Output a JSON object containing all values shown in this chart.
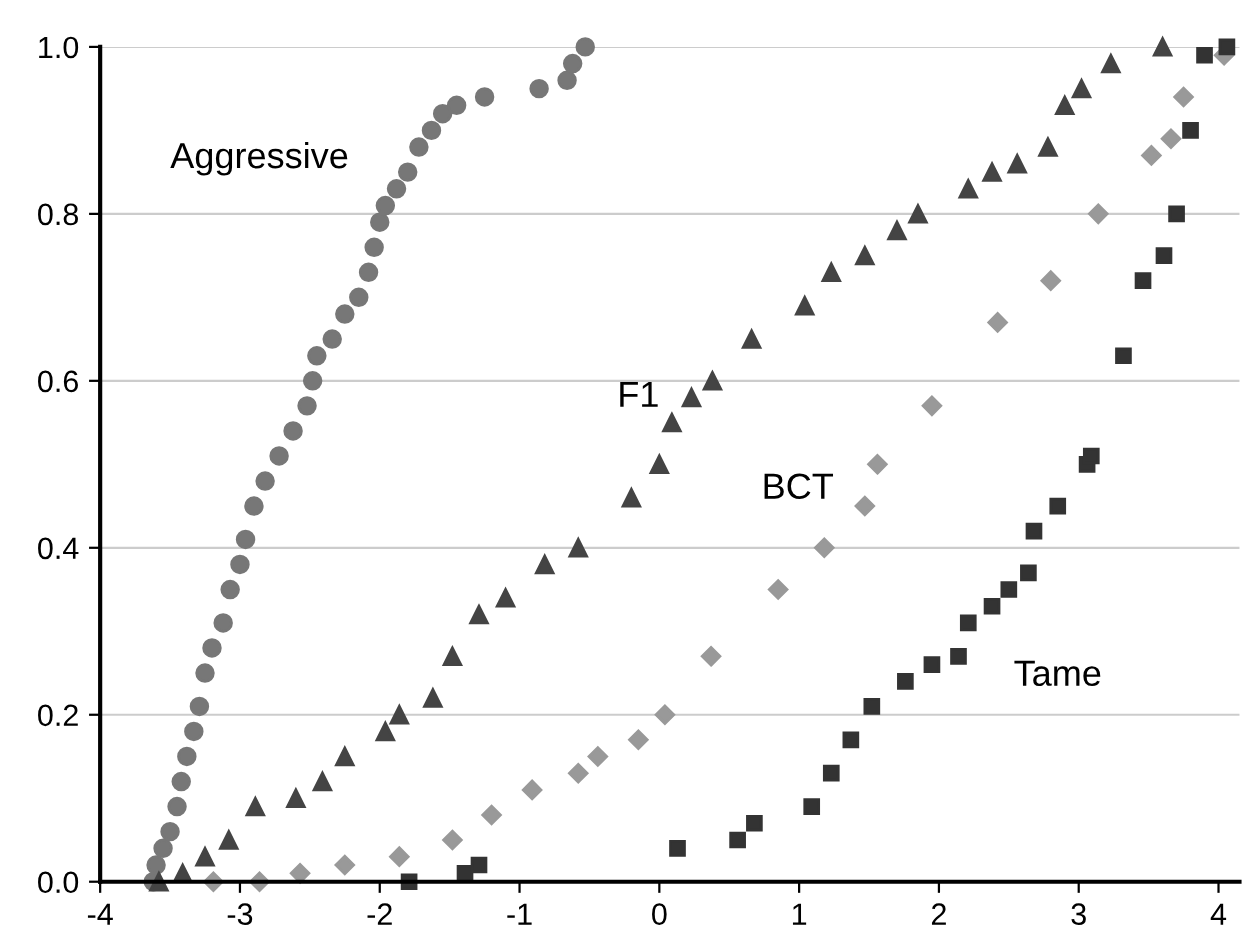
{
  "chart_data": {
    "type": "scatter",
    "xlim": [
      -4,
      4.15
    ],
    "ylim": [
      0,
      1
    ],
    "xticks": [
      -4,
      -3,
      -2,
      -1,
      0,
      1,
      2,
      3,
      4
    ],
    "yticks": [
      {
        "value": 0,
        "label": "0.0"
      },
      {
        "value": 0.2,
        "label": "0.2"
      },
      {
        "value": 0.4,
        "label": "0.4"
      },
      {
        "value": 0.6,
        "label": "0.6"
      },
      {
        "value": 0.8,
        "label": "0.8"
      },
      {
        "value": 1,
        "label": "1.0"
      }
    ],
    "grid": "y",
    "legend": false,
    "series": [
      {
        "name": "Aggressive",
        "color": "#777777",
        "marker": "circle",
        "x": [
          -3.62,
          -3.6,
          -3.55,
          -3.5,
          -3.45,
          -3.42,
          -3.38,
          -3.33,
          -3.29,
          -3.25,
          -3.2,
          -3.12,
          -3.07,
          -3.0,
          -2.96,
          -2.9,
          -2.82,
          -2.72,
          -2.62,
          -2.52,
          -2.48,
          -2.45,
          -2.34,
          -2.25,
          -2.15,
          -2.08,
          -2.04,
          -2.0,
          -1.96,
          -1.88,
          -1.8,
          -1.72,
          -1.63,
          -1.55,
          -1.45,
          -1.25,
          -0.86,
          -0.66,
          -0.62,
          -0.53
        ],
        "values": [
          0.0,
          0.02,
          0.04,
          0.06,
          0.09,
          0.12,
          0.15,
          0.18,
          0.21,
          0.25,
          0.28,
          0.31,
          0.35,
          0.38,
          0.41,
          0.45,
          0.48,
          0.51,
          0.54,
          0.57,
          0.6,
          0.63,
          0.65,
          0.68,
          0.7,
          0.73,
          0.76,
          0.79,
          0.81,
          0.83,
          0.85,
          0.88,
          0.9,
          0.92,
          0.93,
          0.94,
          0.95,
          0.96,
          0.98,
          1.0
        ]
      },
      {
        "name": "F1",
        "color": "#444444",
        "marker": "triangle",
        "x": [
          -3.58,
          -3.41,
          -3.25,
          -3.08,
          -2.89,
          -2.6,
          -2.41,
          -2.25,
          -1.96,
          -1.86,
          -1.62,
          -1.48,
          -1.29,
          -1.1,
          -0.82,
          -0.58,
          -0.2,
          0.0,
          0.09,
          0.23,
          0.38,
          0.66,
          1.04,
          1.23,
          1.47,
          1.7,
          1.85,
          2.21,
          2.38,
          2.56,
          2.78,
          2.9,
          3.02,
          3.23,
          3.6
        ],
        "values": [
          0.0,
          0.01,
          0.03,
          0.05,
          0.09,
          0.1,
          0.12,
          0.15,
          0.18,
          0.2,
          0.22,
          0.27,
          0.32,
          0.34,
          0.38,
          0.4,
          0.46,
          0.5,
          0.55,
          0.58,
          0.6,
          0.65,
          0.69,
          0.73,
          0.75,
          0.78,
          0.8,
          0.83,
          0.85,
          0.86,
          0.88,
          0.93,
          0.95,
          0.98,
          1.0
        ]
      },
      {
        "name": "BCT",
        "color": "#999999",
        "marker": "diamond",
        "x": [
          -3.19,
          -2.86,
          -2.57,
          -2.25,
          -1.86,
          -1.48,
          -1.2,
          -0.91,
          -0.58,
          -0.44,
          -0.15,
          0.04,
          0.37,
          0.85,
          1.18,
          1.47,
          1.56,
          1.95,
          2.42,
          2.8,
          3.14,
          3.52,
          3.66,
          3.75,
          4.04
        ],
        "values": [
          0.0,
          0.0,
          0.01,
          0.02,
          0.03,
          0.05,
          0.08,
          0.11,
          0.13,
          0.15,
          0.17,
          0.2,
          0.27,
          0.35,
          0.4,
          0.45,
          0.5,
          0.57,
          0.67,
          0.72,
          0.8,
          0.87,
          0.89,
          0.94,
          0.99
        ]
      },
      {
        "name": "Tame",
        "color": "#333333",
        "marker": "square",
        "x": [
          -1.79,
          -1.39,
          -1.29,
          0.13,
          0.56,
          0.68,
          1.09,
          1.23,
          1.37,
          1.52,
          1.76,
          1.95,
          2.14,
          2.21,
          2.38,
          2.5,
          2.64,
          2.68,
          2.85,
          3.06,
          3.09,
          3.32,
          3.46,
          3.61,
          3.7,
          3.8,
          3.9,
          4.06
        ],
        "values": [
          0.0,
          0.01,
          0.02,
          0.04,
          0.05,
          0.07,
          0.09,
          0.13,
          0.17,
          0.21,
          0.24,
          0.26,
          0.27,
          0.31,
          0.33,
          0.35,
          0.37,
          0.42,
          0.45,
          0.5,
          0.51,
          0.63,
          0.72,
          0.75,
          0.8,
          0.9,
          0.99,
          1.0
        ]
      }
    ]
  }
}
